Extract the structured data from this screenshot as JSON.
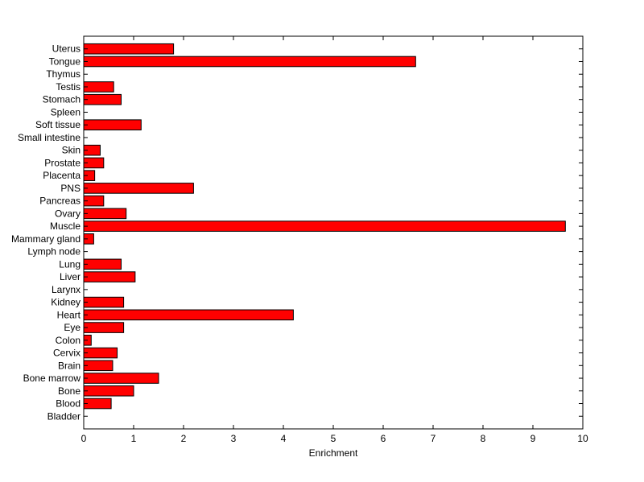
{
  "chart_data": {
    "type": "bar",
    "orientation": "horizontal",
    "categories": [
      "Bladder",
      "Blood",
      "Bone",
      "Bone marrow",
      "Brain",
      "Cervix",
      "Colon",
      "Eye",
      "Heart",
      "Kidney",
      "Larynx",
      "Liver",
      "Lung",
      "Lymph node",
      "Mammary gland",
      "Muscle",
      "Ovary",
      "Pancreas",
      "PNS",
      "Placenta",
      "Prostate",
      "Skin",
      "Small intestine",
      "Soft tissue",
      "Spleen",
      "Stomach",
      "Testis",
      "Thymus",
      "Tongue",
      "Uterus"
    ],
    "values": [
      0,
      0.55,
      1.0,
      1.5,
      0.58,
      0.67,
      0.15,
      0.8,
      4.2,
      0.8,
      0,
      1.03,
      0.75,
      0,
      0.2,
      9.65,
      0.85,
      0.4,
      2.2,
      0.22,
      0.4,
      0.33,
      0,
      1.15,
      0,
      0.75,
      0.6,
      0,
      6.65,
      1.8
    ],
    "xlabel": "Enrichment",
    "ylabel": "",
    "title": "",
    "xlim": [
      0,
      10
    ],
    "xticks": [
      "0",
      "1",
      "2",
      "3",
      "4",
      "5",
      "6",
      "7",
      "8",
      "9",
      "10"
    ],
    "grid": false,
    "bar_color": "#ff0000",
    "edge_color": "#000000"
  }
}
